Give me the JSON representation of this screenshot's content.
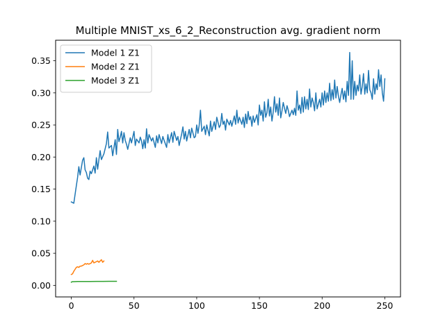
{
  "chart_data": {
    "type": "line",
    "title": "Multiple MNIST_xs_6_2_Reconstruction avg. gradient norm",
    "xlabel": "",
    "ylabel": "",
    "xlim": [
      -12.5,
      262.5
    ],
    "ylim": [
      -0.018,
      0.382
    ],
    "xticks": [
      0,
      50,
      100,
      150,
      200,
      250
    ],
    "yticks": [
      0.0,
      0.05,
      0.1,
      0.15,
      0.2,
      0.25,
      0.3,
      0.35
    ],
    "grid": false,
    "legend_position": "top-left",
    "series": [
      {
        "name": "Model 1 Z1",
        "color": "#1f77b4",
        "points": [
          [
            0,
            0.13
          ],
          [
            2,
            0.128
          ],
          [
            4,
            0.155
          ],
          [
            5,
            0.168
          ],
          [
            6,
            0.185
          ],
          [
            7,
            0.172
          ],
          [
            9,
            0.195
          ],
          [
            10,
            0.199
          ],
          [
            11,
            0.18
          ],
          [
            12,
            0.176
          ],
          [
            13,
            0.167
          ],
          [
            14,
            0.165
          ],
          [
            15,
            0.178
          ],
          [
            16,
            0.174
          ],
          [
            18,
            0.186
          ],
          [
            19,
            0.175
          ],
          [
            20,
            0.199
          ],
          [
            21,
            0.181
          ],
          [
            22,
            0.196
          ],
          [
            23,
            0.21
          ],
          [
            24,
            0.196
          ],
          [
            26,
            0.205
          ],
          [
            27,
            0.213
          ],
          [
            28,
            0.221
          ],
          [
            29,
            0.239
          ],
          [
            30,
            0.214
          ],
          [
            32,
            0.218
          ],
          [
            33,
            0.202
          ],
          [
            35,
            0.227
          ],
          [
            36,
            0.204
          ],
          [
            37,
            0.243
          ],
          [
            38,
            0.224
          ],
          [
            39,
            0.231
          ],
          [
            40,
            0.24
          ],
          [
            41,
            0.222
          ],
          [
            42,
            0.238
          ],
          [
            43,
            0.226
          ],
          [
            44,
            0.22
          ],
          [
            45,
            0.212
          ],
          [
            47,
            0.23
          ],
          [
            48,
            0.222
          ],
          [
            50,
            0.24
          ],
          [
            51,
            0.218
          ],
          [
            52,
            0.228
          ],
          [
            54,
            0.222
          ],
          [
            55,
            0.231
          ],
          [
            56,
            0.225
          ],
          [
            57,
            0.213
          ],
          [
            58,
            0.227
          ],
          [
            59,
            0.214
          ],
          [
            60,
            0.244
          ],
          [
            61,
            0.222
          ],
          [
            62,
            0.235
          ],
          [
            64,
            0.225
          ],
          [
            65,
            0.23
          ],
          [
            67,
            0.215
          ],
          [
            68,
            0.233
          ],
          [
            69,
            0.222
          ],
          [
            70,
            0.235
          ],
          [
            72,
            0.221
          ],
          [
            73,
            0.232
          ],
          [
            74,
            0.226
          ],
          [
            76,
            0.215
          ],
          [
            77,
            0.235
          ],
          [
            78,
            0.222
          ],
          [
            80,
            0.238
          ],
          [
            81,
            0.223
          ],
          [
            82,
            0.24
          ],
          [
            84,
            0.226
          ],
          [
            85,
            0.232
          ],
          [
            86,
            0.218
          ],
          [
            88,
            0.236
          ],
          [
            89,
            0.247
          ],
          [
            90,
            0.228
          ],
          [
            91,
            0.24
          ],
          [
            92,
            0.225
          ],
          [
            94,
            0.243
          ],
          [
            95,
            0.23
          ],
          [
            96,
            0.245
          ],
          [
            98,
            0.23
          ],
          [
            99,
            0.232
          ],
          [
            100,
            0.25
          ],
          [
            101,
            0.237
          ],
          [
            102,
            0.25
          ],
          [
            103,
            0.273
          ],
          [
            104,
            0.24
          ],
          [
            106,
            0.248
          ],
          [
            107,
            0.235
          ],
          [
            108,
            0.25
          ],
          [
            110,
            0.233
          ],
          [
            111,
            0.256
          ],
          [
            112,
            0.24
          ],
          [
            114,
            0.255
          ],
          [
            115,
            0.243
          ],
          [
            116,
            0.262
          ],
          [
            118,
            0.246
          ],
          [
            119,
            0.25
          ],
          [
            120,
            0.268
          ],
          [
            121,
            0.251
          ],
          [
            122,
            0.256
          ],
          [
            123,
            0.242
          ],
          [
            124,
            0.259
          ],
          [
            126,
            0.25
          ],
          [
            127,
            0.257
          ],
          [
            128,
            0.248
          ],
          [
            130,
            0.264
          ],
          [
            131,
            0.251
          ],
          [
            132,
            0.273
          ],
          [
            133,
            0.253
          ],
          [
            134,
            0.262
          ],
          [
            136,
            0.251
          ],
          [
            137,
            0.262
          ],
          [
            138,
            0.246
          ],
          [
            139,
            0.267
          ],
          [
            140,
            0.252
          ],
          [
            141,
            0.271
          ],
          [
            142,
            0.258
          ],
          [
            143,
            0.263
          ],
          [
            144,
            0.248
          ],
          [
            145,
            0.264
          ],
          [
            146,
            0.254
          ],
          [
            148,
            0.266
          ],
          [
            149,
            0.25
          ],
          [
            150,
            0.281
          ],
          [
            151,
            0.265
          ],
          [
            152,
            0.273
          ],
          [
            153,
            0.256
          ],
          [
            154,
            0.286
          ],
          [
            155,
            0.262
          ],
          [
            156,
            0.269
          ],
          [
            157,
            0.29
          ],
          [
            158,
            0.264
          ],
          [
            159,
            0.278
          ],
          [
            160,
            0.256
          ],
          [
            161,
            0.27
          ],
          [
            162,
            0.294
          ],
          [
            163,
            0.27
          ],
          [
            164,
            0.283
          ],
          [
            165,
            0.265
          ],
          [
            166,
            0.292
          ],
          [
            167,
            0.261
          ],
          [
            168,
            0.272
          ],
          [
            169,
            0.285
          ],
          [
            170,
            0.276
          ],
          [
            171,
            0.268
          ],
          [
            172,
            0.28
          ],
          [
            173,
            0.273
          ],
          [
            174,
            0.263
          ],
          [
            176,
            0.273
          ],
          [
            177,
            0.266
          ],
          [
            178,
            0.276
          ],
          [
            179,
            0.265
          ],
          [
            180,
            0.303
          ],
          [
            181,
            0.273
          ],
          [
            182,
            0.281
          ],
          [
            183,
            0.268
          ],
          [
            184,
            0.293
          ],
          [
            185,
            0.27
          ],
          [
            186,
            0.294
          ],
          [
            187,
            0.275
          ],
          [
            188,
            0.29
          ],
          [
            189,
            0.274
          ],
          [
            190,
            0.306
          ],
          [
            191,
            0.278
          ],
          [
            192,
            0.292
          ],
          [
            193,
            0.285
          ],
          [
            194,
            0.272
          ],
          [
            195,
            0.3
          ],
          [
            196,
            0.275
          ],
          [
            198,
            0.29
          ],
          [
            199,
            0.278
          ],
          [
            200,
            0.3
          ],
          [
            201,
            0.281
          ],
          [
            202,
            0.303
          ],
          [
            203,
            0.285
          ],
          [
            204,
            0.3
          ],
          [
            205,
            0.287
          ],
          [
            206,
            0.315
          ],
          [
            207,
            0.288
          ],
          [
            208,
            0.305
          ],
          [
            209,
            0.29
          ],
          [
            210,
            0.32
          ],
          [
            211,
            0.292
          ],
          [
            212,
            0.31
          ],
          [
            213,
            0.295
          ],
          [
            214,
            0.285
          ],
          [
            215,
            0.297
          ],
          [
            216,
            0.307
          ],
          [
            217,
            0.29
          ],
          [
            218,
            0.303
          ],
          [
            219,
            0.286
          ],
          [
            220,
            0.318
          ],
          [
            221,
            0.296
          ],
          [
            222,
            0.363
          ],
          [
            223,
            0.29
          ],
          [
            224,
            0.35
          ],
          [
            225,
            0.29
          ],
          [
            226,
            0.318
          ],
          [
            227,
            0.296
          ],
          [
            228,
            0.312
          ],
          [
            229,
            0.303
          ],
          [
            230,
            0.328
          ],
          [
            231,
            0.298
          ],
          [
            232,
            0.31
          ],
          [
            233,
            0.33
          ],
          [
            234,
            0.298
          ],
          [
            235,
            0.314
          ],
          [
            236,
            0.3
          ],
          [
            237,
            0.335
          ],
          [
            238,
            0.305
          ],
          [
            239,
            0.3
          ],
          [
            240,
            0.29
          ],
          [
            241,
            0.322
          ],
          [
            242,
            0.298
          ],
          [
            243,
            0.314
          ],
          [
            244,
            0.305
          ],
          [
            245,
            0.336
          ],
          [
            246,
            0.31
          ],
          [
            247,
            0.328
          ],
          [
            248,
            0.3
          ],
          [
            249,
            0.287
          ],
          [
            250,
            0.322
          ]
        ]
      },
      {
        "name": "Model 2 Z1",
        "color": "#ff7f0e",
        "points": [
          [
            0,
            0.017
          ],
          [
            1,
            0.018
          ],
          [
            2,
            0.022
          ],
          [
            3,
            0.025
          ],
          [
            4,
            0.028
          ],
          [
            5,
            0.029
          ],
          [
            6,
            0.028
          ],
          [
            7,
            0.03
          ],
          [
            8,
            0.03
          ],
          [
            9,
            0.031
          ],
          [
            10,
            0.032
          ],
          [
            11,
            0.034
          ],
          [
            12,
            0.033
          ],
          [
            13,
            0.034
          ],
          [
            14,
            0.033
          ],
          [
            15,
            0.034
          ],
          [
            16,
            0.035
          ],
          [
            17,
            0.039
          ],
          [
            18,
            0.035
          ],
          [
            19,
            0.036
          ],
          [
            20,
            0.037
          ],
          [
            21,
            0.038
          ],
          [
            22,
            0.036
          ],
          [
            23,
            0.038
          ],
          [
            24,
            0.04
          ],
          [
            25,
            0.036
          ],
          [
            26,
            0.038
          ]
        ]
      },
      {
        "name": "Model 3 Z1",
        "color": "#2ca02c",
        "points": [
          [
            0,
            0.005
          ],
          [
            1,
            0.0058
          ],
          [
            2,
            0.0058
          ],
          [
            5,
            0.006
          ],
          [
            10,
            0.006
          ],
          [
            15,
            0.006
          ],
          [
            20,
            0.0062
          ],
          [
            25,
            0.0062
          ],
          [
            30,
            0.0063
          ],
          [
            36,
            0.0063
          ]
        ]
      }
    ]
  }
}
